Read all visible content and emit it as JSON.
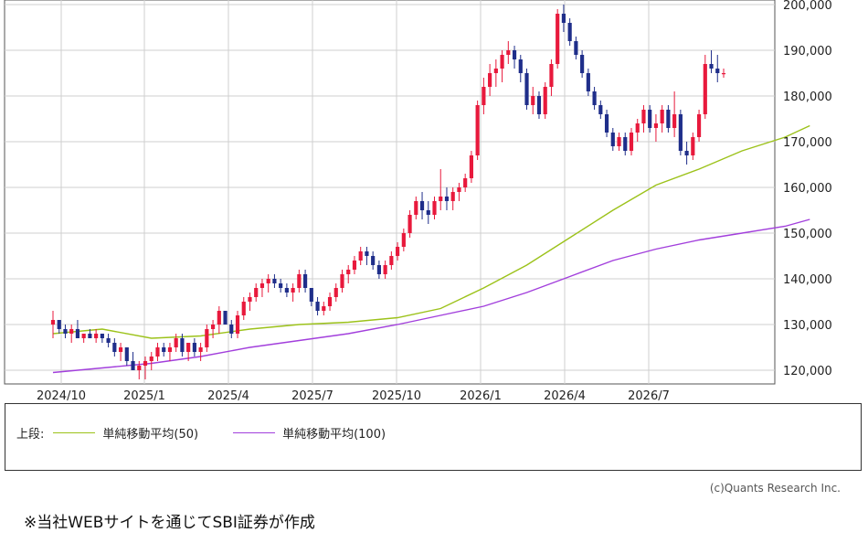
{
  "chart_data": {
    "type": "candlestick",
    "y_ticks": [
      "120,000",
      "130,000",
      "140,000",
      "150,000",
      "160,000",
      "170,000",
      "180,000",
      "190,000",
      "200,000"
    ],
    "y_tick_values": [
      120000,
      130000,
      140000,
      150000,
      160000,
      170000,
      180000,
      190000,
      200000
    ],
    "x_ticks": [
      "2024/10",
      "2025/1",
      "2025/4",
      "2025/7",
      "2025/10",
      "2026/1",
      "2026/4",
      "2026/7"
    ],
    "ylim": [
      117000,
      201000
    ],
    "grid": true,
    "up_color": "#e8193c",
    "down_color": "#1f2e8a",
    "candles": [
      [
        130,
        133,
        127,
        131
      ],
      [
        131,
        131,
        128,
        129
      ],
      [
        129,
        130,
        127,
        128
      ],
      [
        128,
        130,
        126,
        129
      ],
      [
        129,
        131,
        128,
        127
      ],
      [
        127,
        128,
        126,
        128
      ],
      [
        128,
        129,
        127,
        127
      ],
      [
        127,
        129,
        126,
        128
      ],
      [
        128,
        128,
        126,
        127
      ],
      [
        127,
        128,
        125,
        126
      ],
      [
        126,
        127,
        123,
        124
      ],
      [
        124,
        126,
        122,
        125
      ],
      [
        125,
        125,
        121,
        122
      ],
      [
        122,
        124,
        120,
        120
      ],
      [
        120,
        122,
        118,
        121
      ],
      [
        121,
        123,
        118,
        122
      ],
      [
        122,
        124,
        120,
        123
      ],
      [
        123,
        126,
        122,
        125
      ],
      [
        125,
        126,
        123,
        124
      ],
      [
        124,
        126,
        122,
        125
      ],
      [
        125,
        128,
        124,
        127
      ],
      [
        127,
        128,
        123,
        124
      ],
      [
        124,
        126,
        122,
        126
      ],
      [
        126,
        127,
        123,
        124
      ],
      [
        124,
        126,
        122,
        125
      ],
      [
        125,
        130,
        124,
        129
      ],
      [
        129,
        131,
        127,
        130
      ],
      [
        130,
        134,
        128,
        133
      ],
      [
        133,
        133,
        130,
        130
      ],
      [
        130,
        131,
        127,
        128
      ],
      [
        128,
        133,
        127,
        132
      ],
      [
        132,
        136,
        131,
        135
      ],
      [
        135,
        137,
        133,
        136
      ],
      [
        136,
        139,
        135,
        138
      ],
      [
        138,
        140,
        136,
        139
      ],
      [
        139,
        141,
        137,
        140
      ],
      [
        140,
        141,
        138,
        139
      ],
      [
        139,
        140,
        137,
        138
      ],
      [
        138,
        139,
        136,
        137
      ],
      [
        137,
        139,
        135,
        138
      ],
      [
        138,
        142,
        137,
        141
      ],
      [
        141,
        142,
        137,
        138
      ],
      [
        138,
        138,
        134,
        135
      ],
      [
        135,
        136,
        132,
        133
      ],
      [
        133,
        135,
        132,
        134
      ],
      [
        134,
        137,
        133,
        136
      ],
      [
        136,
        139,
        135,
        138
      ],
      [
        138,
        142,
        137,
        141
      ],
      [
        141,
        143,
        139,
        142
      ],
      [
        142,
        145,
        141,
        144
      ],
      [
        144,
        147,
        143,
        146
      ],
      [
        146,
        147,
        143,
        145
      ],
      [
        145,
        146,
        142,
        143
      ],
      [
        143,
        144,
        140,
        141
      ],
      [
        141,
        144,
        140,
        143
      ],
      [
        143,
        146,
        142,
        145
      ],
      [
        145,
        148,
        144,
        147
      ],
      [
        147,
        151,
        146,
        150
      ],
      [
        150,
        155,
        149,
        154
      ],
      [
        154,
        158,
        153,
        157
      ],
      [
        157,
        159,
        153,
        155
      ],
      [
        155,
        157,
        152,
        154
      ],
      [
        154,
        158,
        153,
        157
      ],
      [
        157,
        164,
        155,
        158
      ],
      [
        158,
        160,
        155,
        157
      ],
      [
        157,
        160,
        155,
        159
      ],
      [
        159,
        161,
        157,
        160
      ],
      [
        160,
        163,
        159,
        162
      ],
      [
        162,
        168,
        161,
        167
      ],
      [
        167,
        179,
        166,
        178
      ],
      [
        178,
        184,
        176,
        182
      ],
      [
        182,
        187,
        180,
        185
      ],
      [
        185,
        188,
        182,
        186
      ],
      [
        186,
        190,
        183,
        189
      ],
      [
        189,
        192,
        187,
        190
      ],
      [
        190,
        191,
        186,
        188
      ],
      [
        188,
        189,
        183,
        185
      ],
      [
        185,
        186,
        177,
        178
      ],
      [
        178,
        182,
        176,
        180
      ],
      [
        180,
        181,
        175,
        176
      ],
      [
        176,
        183,
        175,
        182
      ],
      [
        182,
        188,
        180,
        187
      ],
      [
        187,
        199,
        186,
        198
      ],
      [
        198,
        200,
        194,
        196
      ],
      [
        196,
        197,
        191,
        192
      ],
      [
        192,
        193,
        188,
        189
      ],
      [
        189,
        190,
        184,
        185
      ],
      [
        185,
        186,
        180,
        181
      ],
      [
        181,
        182,
        177,
        178
      ],
      [
        178,
        179,
        175,
        176
      ],
      [
        176,
        177,
        171,
        172
      ],
      [
        172,
        173,
        168,
        169
      ],
      [
        169,
        172,
        168,
        171
      ],
      [
        171,
        172,
        167,
        168
      ],
      [
        168,
        173,
        167,
        172
      ],
      [
        172,
        175,
        170,
        174
      ],
      [
        174,
        178,
        172,
        177
      ],
      [
        177,
        178,
        172,
        173
      ],
      [
        173,
        176,
        170,
        174
      ],
      [
        174,
        178,
        172,
        177
      ],
      [
        177,
        178,
        172,
        173
      ],
      [
        173,
        181,
        171,
        176
      ],
      [
        176,
        177,
        167,
        168
      ],
      [
        168,
        170,
        165,
        167
      ],
      [
        167,
        172,
        166,
        171
      ],
      [
        171,
        177,
        170,
        176
      ],
      [
        176,
        189,
        175,
        187
      ],
      [
        187,
        190,
        185,
        186
      ],
      [
        186,
        189,
        183,
        185
      ],
      [
        185,
        186,
        184,
        185
      ]
    ],
    "series": [
      {
        "name": "単純移動平均(50)",
        "color": "#9cc21a",
        "points": [
          [
            0,
            128
          ],
          [
            8,
            129
          ],
          [
            16,
            127
          ],
          [
            24,
            127.5
          ],
          [
            32,
            129
          ],
          [
            40,
            130
          ],
          [
            48,
            130.5
          ],
          [
            56,
            131.5
          ],
          [
            63,
            133.5
          ],
          [
            70,
            138
          ],
          [
            77,
            143
          ],
          [
            84,
            149
          ],
          [
            91,
            155
          ],
          [
            98,
            160.5
          ],
          [
            105,
            164
          ],
          [
            112,
            168
          ],
          [
            119,
            171
          ],
          [
            123,
            173.5
          ]
        ]
      },
      {
        "name": "単純移動平均(100)",
        "color": "#a23fdc",
        "points": [
          [
            0,
            119.5
          ],
          [
            8,
            120.5
          ],
          [
            16,
            121.5
          ],
          [
            24,
            123
          ],
          [
            32,
            125
          ],
          [
            40,
            126.5
          ],
          [
            48,
            128
          ],
          [
            56,
            130
          ],
          [
            63,
            132
          ],
          [
            70,
            134
          ],
          [
            77,
            137
          ],
          [
            84,
            140.5
          ],
          [
            91,
            144
          ],
          [
            98,
            146.5
          ],
          [
            105,
            148.5
          ],
          [
            112,
            150
          ],
          [
            119,
            151.5
          ],
          [
            123,
            153
          ]
        ]
      }
    ]
  },
  "legend": {
    "prefix": "上段:",
    "items": [
      {
        "label": "単純移動平均(50)",
        "color": "#9cc21a"
      },
      {
        "label": "単純移動平均(100)",
        "color": "#a23fdc"
      }
    ]
  },
  "copyright": "(c)Quants Research Inc.",
  "note": "※当社WEBサイトを通じてSBI証券が作成"
}
